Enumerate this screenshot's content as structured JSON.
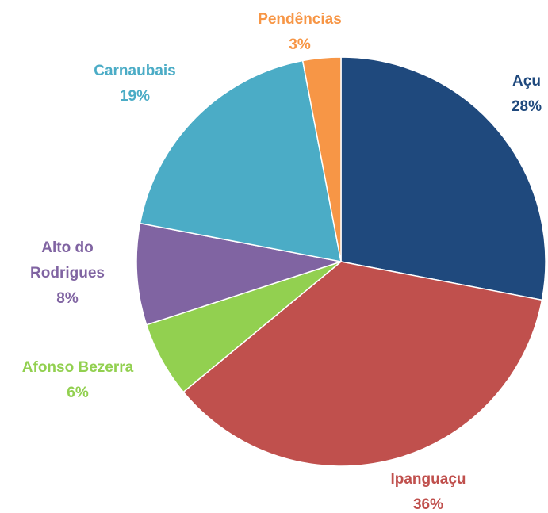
{
  "chart_data": {
    "type": "pie",
    "categories": [
      "Açu",
      "Ipanguaçu",
      "Afonso Bezerra",
      "Alto do Rodrigues",
      "Carnaubais",
      "Pendências"
    ],
    "values": [
      28,
      36,
      6,
      8,
      19,
      3
    ],
    "value_labels": [
      "28%",
      "36%",
      "6%",
      "8%",
      "19%",
      "3%"
    ],
    "colors": [
      "#1f497d",
      "#c0504d",
      "#92d050",
      "#8064a2",
      "#4bacc6",
      "#f79646"
    ]
  }
}
